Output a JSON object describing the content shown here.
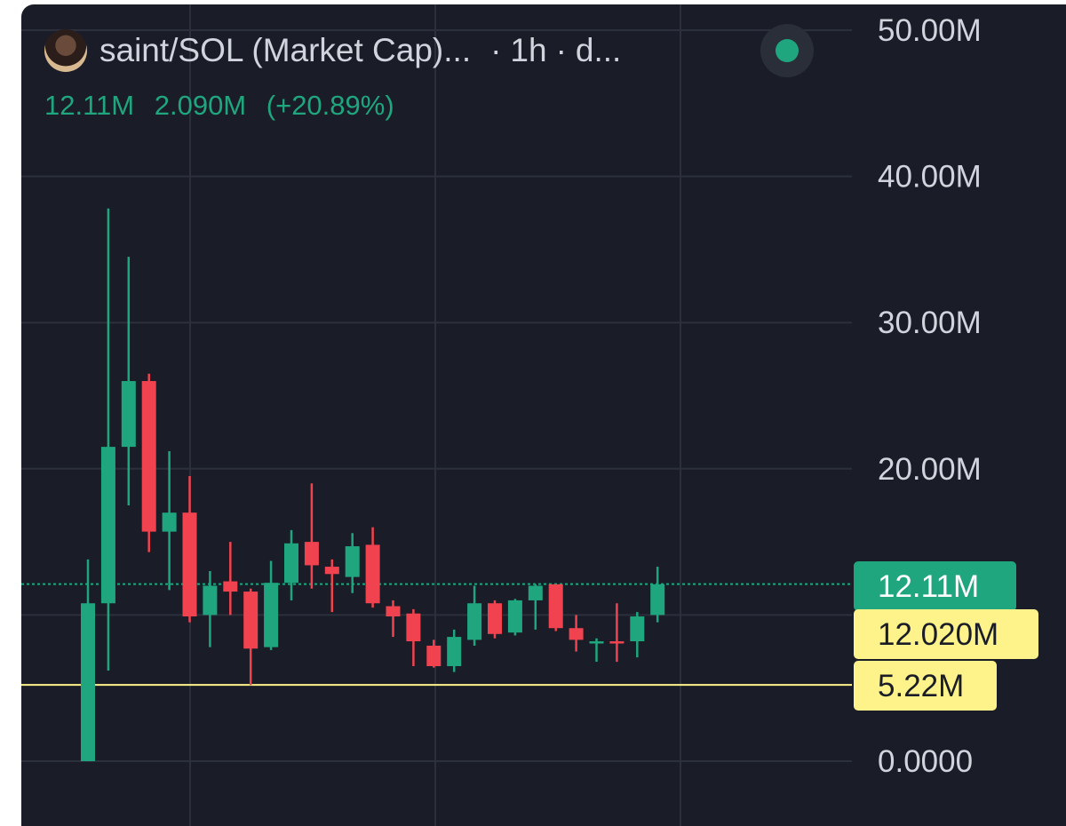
{
  "header": {
    "symbol": "saint/SOL (Market Cap)...",
    "separator": "·",
    "interval": "1h",
    "extra": "d..."
  },
  "quote": {
    "price": "12.11M",
    "change": "2.090M",
    "change_pct": "(+20.89%)"
  },
  "colors": {
    "background": "#1a1d27",
    "up": "#1fa67f",
    "down": "#f0434f",
    "grid": "#2c303c",
    "axis_text": "#d1d4dc",
    "highlight": "#fdf38a",
    "highlight_line": "#fdf38a"
  },
  "icons": [
    "avatar-icon",
    "status-dot-icon"
  ],
  "chart_data": {
    "type": "candlestick",
    "ylim": [
      0,
      50000000
    ],
    "y_ticks": [
      "50.00M",
      "40.00M",
      "30.00M",
      "20.00M",
      "0.0000"
    ],
    "grid": true,
    "candles": [
      {
        "open": 0.0,
        "high": 13.8,
        "low": 0.0,
        "close": 10.8
      },
      {
        "open": 10.8,
        "high": 37.8,
        "low": 6.2,
        "close": 21.5
      },
      {
        "open": 21.5,
        "high": 34.5,
        "low": 17.5,
        "close": 26.0
      },
      {
        "open": 26.0,
        "high": 26.5,
        "low": 14.3,
        "close": 15.7
      },
      {
        "open": 15.7,
        "high": 21.2,
        "low": 11.7,
        "close": 17.0
      },
      {
        "open": 17.0,
        "high": 19.5,
        "low": 9.5,
        "close": 9.9
      },
      {
        "open": 10.0,
        "high": 13.0,
        "low": 7.8,
        "close": 12.0
      },
      {
        "open": 12.3,
        "high": 15.0,
        "low": 10.0,
        "close": 11.6
      },
      {
        "open": 11.6,
        "high": 11.8,
        "low": 5.2,
        "close": 7.7
      },
      {
        "open": 7.8,
        "high": 13.7,
        "low": 7.6,
        "close": 12.2
      },
      {
        "open": 12.2,
        "high": 15.8,
        "low": 11.0,
        "close": 14.9
      },
      {
        "open": 15.0,
        "high": 19.0,
        "low": 11.8,
        "close": 13.4
      },
      {
        "open": 13.3,
        "high": 13.8,
        "low": 10.2,
        "close": 12.8
      },
      {
        "open": 12.6,
        "high": 15.6,
        "low": 11.5,
        "close": 14.7
      },
      {
        "open": 14.8,
        "high": 16.0,
        "low": 10.5,
        "close": 10.8
      },
      {
        "open": 10.6,
        "high": 11.0,
        "low": 8.5,
        "close": 9.9
      },
      {
        "open": 10.1,
        "high": 10.4,
        "low": 6.5,
        "close": 8.2
      },
      {
        "open": 7.9,
        "high": 8.3,
        "low": 6.4,
        "close": 6.5
      },
      {
        "open": 6.5,
        "high": 9.0,
        "low": 6.1,
        "close": 8.5
      },
      {
        "open": 8.3,
        "high": 12.0,
        "low": 7.9,
        "close": 10.8
      },
      {
        "open": 10.8,
        "high": 11.0,
        "low": 8.4,
        "close": 8.7
      },
      {
        "open": 8.8,
        "high": 11.1,
        "low": 8.6,
        "close": 11.0
      },
      {
        "open": 11.0,
        "high": 12.1,
        "low": 9.0,
        "close": 12.0
      },
      {
        "open": 12.1,
        "high": 12.1,
        "low": 8.9,
        "close": 9.1
      },
      {
        "open": 9.1,
        "high": 10.0,
        "low": 7.5,
        "close": 8.3
      },
      {
        "open": 8.2,
        "high": 8.4,
        "low": 6.8,
        "close": 8.2
      },
      {
        "open": 8.2,
        "high": 10.8,
        "low": 6.8,
        "close": 8.1
      },
      {
        "open": 8.2,
        "high": 10.2,
        "low": 7.1,
        "close": 9.9
      },
      {
        "open": 10.0,
        "high": 13.3,
        "low": 9.5,
        "close": 12.1
      }
    ],
    "price_lines": [
      {
        "value": 12.11,
        "label": "12.11M",
        "style": "dotted-green"
      },
      {
        "value": 5.22,
        "label": "5.22M",
        "style": "solid-yellow"
      }
    ],
    "y_tags": [
      {
        "label": "12.11M",
        "kind": "last-price"
      },
      {
        "label": "12.020M",
        "kind": "crosshair"
      },
      {
        "label": "5.22M",
        "kind": "alert"
      }
    ]
  }
}
